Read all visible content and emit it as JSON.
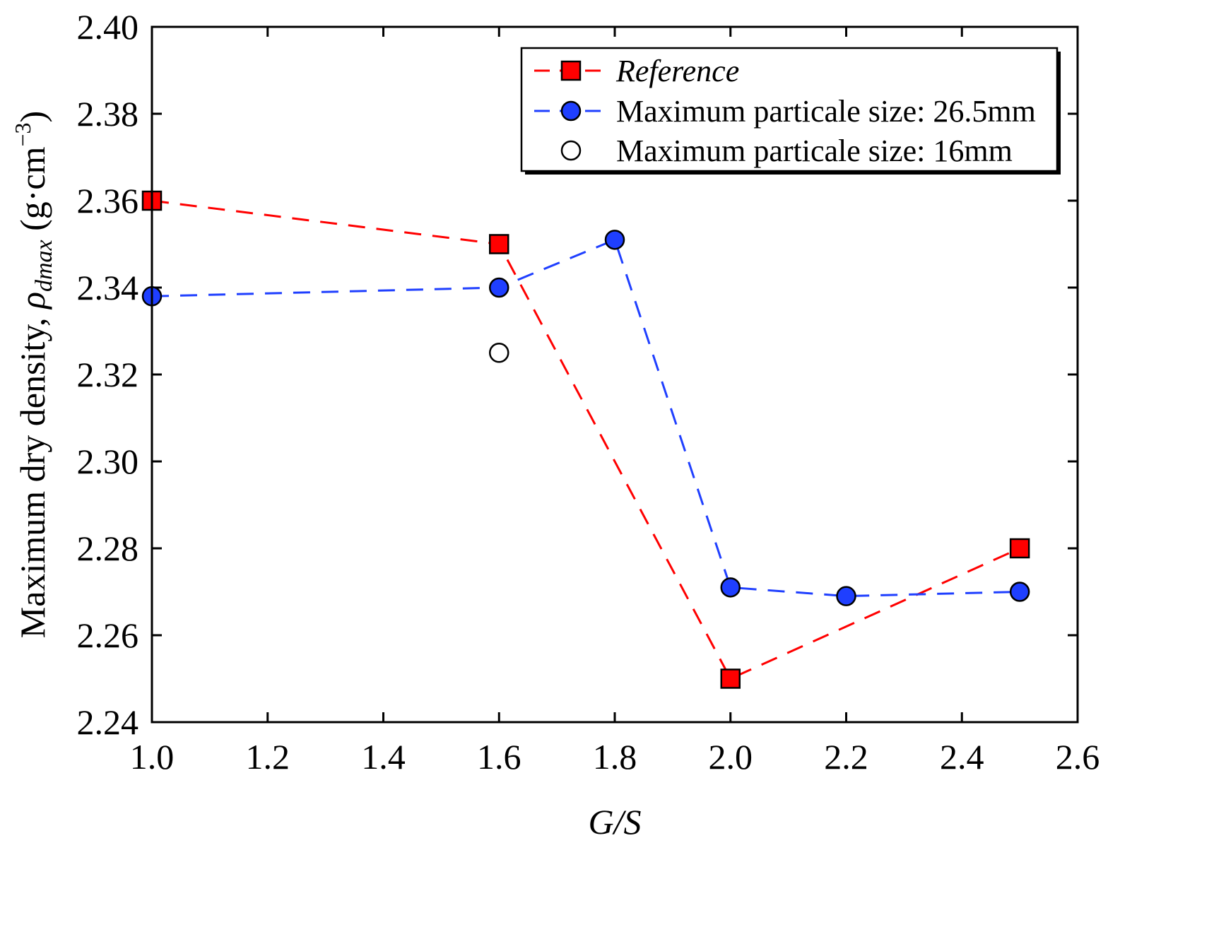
{
  "chart_data": {
    "type": "line",
    "xlabel": "G/S",
    "ylabel": {
      "prefix": "Maximum dry density, ",
      "symbol": "ρ",
      "subscript": "dmax",
      "unit_open": " (g·cm",
      "unit_exp": "−3",
      "unit_close": ")"
    },
    "xlim": [
      1.0,
      2.6
    ],
    "ylim": [
      2.24,
      2.4
    ],
    "xticks": [
      "1.0",
      "1.2",
      "1.4",
      "1.6",
      "1.8",
      "2.0",
      "2.2",
      "2.4",
      "2.6"
    ],
    "yticks": [
      "2.24",
      "2.26",
      "2.28",
      "2.30",
      "2.32",
      "2.34",
      "2.36",
      "2.38",
      "2.40"
    ],
    "legend_position": "top-right",
    "series": [
      {
        "name": "Reference",
        "italic": true,
        "color": "#ff0000",
        "marker": "square",
        "line": "dashed",
        "x": [
          1.0,
          1.6,
          2.0,
          2.5
        ],
        "y": [
          2.36,
          2.35,
          2.25,
          2.28
        ]
      },
      {
        "name": "Maximum particale size: 26.5mm",
        "italic": false,
        "color": "#1f3fff",
        "marker": "circle",
        "line": "dashed",
        "x": [
          1.0,
          1.6,
          1.8,
          2.0,
          2.2,
          2.5
        ],
        "y": [
          2.338,
          2.34,
          2.351,
          2.271,
          2.269,
          2.27
        ]
      },
      {
        "name": "Maximum particale size: 16mm",
        "italic": false,
        "color": "#000000",
        "marker": "open-circle",
        "line": "none",
        "x": [
          1.6
        ],
        "y": [
          2.325
        ]
      }
    ]
  }
}
